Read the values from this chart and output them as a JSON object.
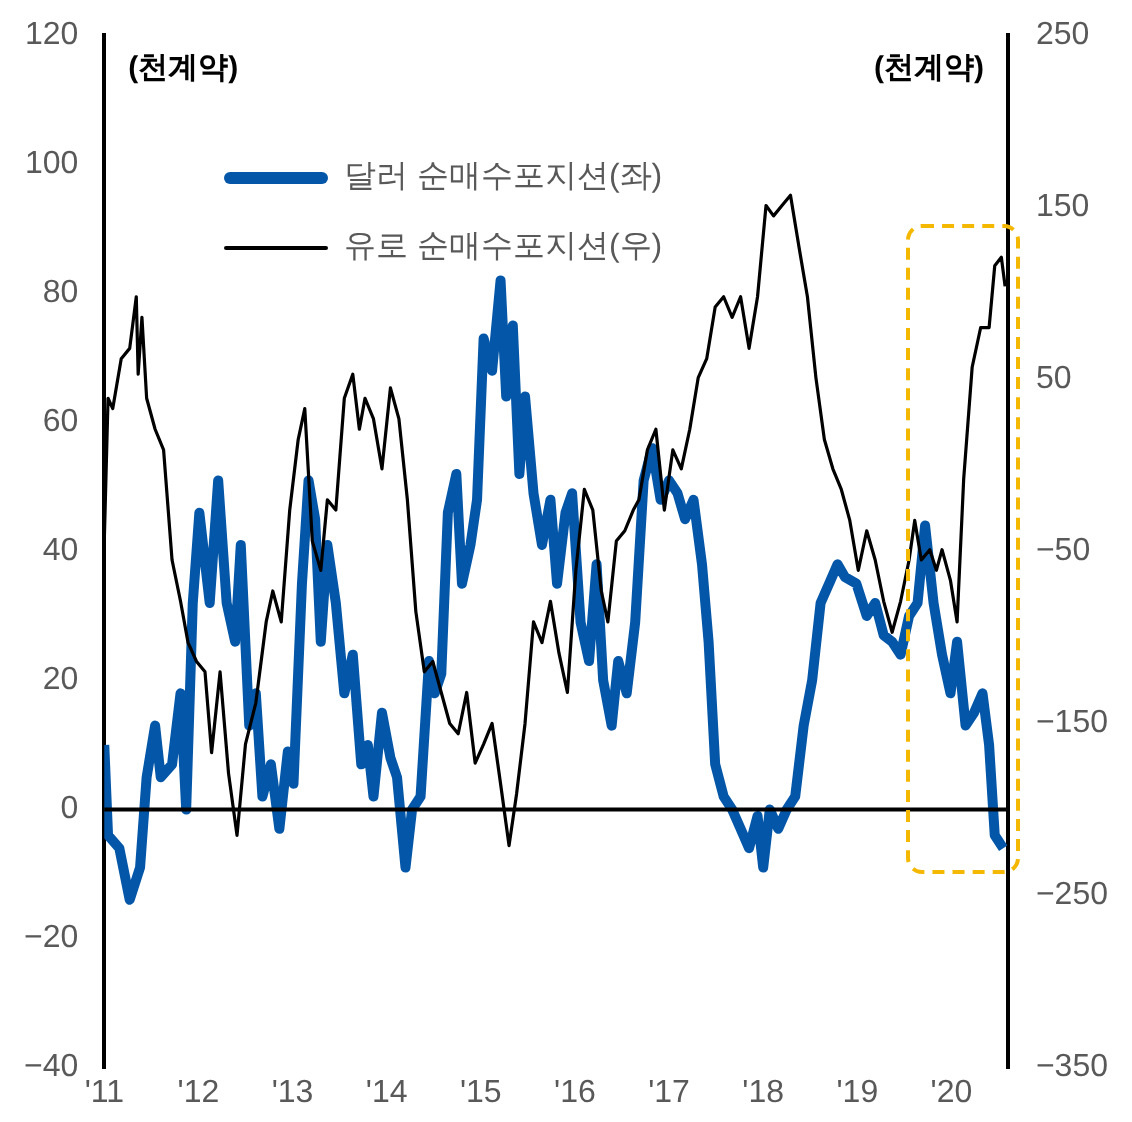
{
  "chart_data": {
    "type": "line",
    "ylabel": "(천계약)",
    "y2label": "(천계약)",
    "xlim": [
      2011,
      2020.6
    ],
    "xticks": [
      {
        "value": 2011,
        "label": "'11"
      },
      {
        "value": 2012,
        "label": "'12"
      },
      {
        "value": 2013,
        "label": "'13"
      },
      {
        "value": 2014,
        "label": "'14"
      },
      {
        "value": 2015,
        "label": "'15"
      },
      {
        "value": 2016,
        "label": "'16"
      },
      {
        "value": 2017,
        "label": "'17"
      },
      {
        "value": 2018,
        "label": "'18"
      },
      {
        "value": 2019,
        "label": "'19"
      },
      {
        "value": 2020,
        "label": "'20"
      }
    ],
    "ylim": [
      -40,
      120
    ],
    "yticks": [
      -40,
      -20,
      0,
      20,
      40,
      60,
      80,
      100,
      120
    ],
    "y2lim": [
      -350,
      250
    ],
    "y2ticks": [
      -350,
      -250,
      -150,
      -50,
      50,
      150,
      250
    ],
    "legend": "top left",
    "grid": false,
    "marker": "none",
    "ref_lines": [
      {
        "axis": "y",
        "value": 0,
        "color": "#000000"
      }
    ],
    "series": [
      {
        "name": "달러 순매수포지션(좌)",
        "color": "#0457a8",
        "axis": "y",
        "x": [
          2011.0,
          2011.04,
          2011.16,
          2011.27,
          2011.38,
          2011.45,
          2011.54,
          2011.6,
          2011.72,
          2011.81,
          2011.87,
          2011.94,
          2012.01,
          2012.12,
          2012.21,
          2012.3,
          2012.39,
          2012.45,
          2012.54,
          2012.61,
          2012.68,
          2012.77,
          2012.86,
          2012.95,
          2013.01,
          2013.1,
          2013.17,
          2013.24,
          2013.3,
          2013.37,
          2013.46,
          2013.55,
          2013.64,
          2013.73,
          2013.8,
          2013.86,
          2013.95,
          2014.04,
          2014.11,
          2014.2,
          2014.27,
          2014.36,
          2014.45,
          2014.51,
          2014.58,
          2014.65,
          2014.74,
          2014.8,
          2014.89,
          2014.96,
          2015.03,
          2015.12,
          2015.21,
          2015.27,
          2015.34,
          2015.41,
          2015.47,
          2015.56,
          2015.65,
          2015.74,
          2015.81,
          2015.9,
          2015.97,
          2016.06,
          2016.15,
          2016.23,
          2016.3,
          2016.39,
          2016.46,
          2016.55,
          2016.64,
          2016.73,
          2016.82,
          2016.91,
          2017.0,
          2017.09,
          2017.17,
          2017.26,
          2017.35,
          2017.42,
          2017.49,
          2017.58,
          2017.67,
          2017.76,
          2017.85,
          2017.94,
          2018.0,
          2018.07,
          2018.16,
          2018.25,
          2018.34,
          2018.43,
          2018.52,
          2018.61,
          2018.7,
          2018.79,
          2018.87,
          2018.99,
          2019.1,
          2019.19,
          2019.28,
          2019.37,
          2019.46,
          2019.55,
          2019.64,
          2019.72,
          2019.81,
          2019.9,
          2019.99,
          2020.06,
          2020.15,
          2020.24,
          2020.33,
          2020.4,
          2020.46,
          2020.55
        ],
        "values": [
          10,
          -4,
          -6,
          -14,
          -9,
          5,
          13,
          5,
          7,
          18,
          0,
          32,
          46,
          32,
          51,
          32,
          26,
          41,
          13,
          18,
          2,
          7,
          -3,
          9,
          4,
          35,
          51,
          45,
          26,
          41,
          32,
          18,
          24,
          7,
          10,
          2,
          15,
          8,
          5,
          -9,
          0,
          2,
          23,
          18,
          21,
          46,
          52,
          35,
          41,
          48,
          73,
          68,
          82,
          64,
          75,
          52,
          64,
          49,
          41,
          48,
          35,
          46,
          49,
          29,
          23,
          38,
          20,
          13,
          23,
          18,
          29,
          51,
          56,
          48,
          51,
          49,
          45,
          48,
          38,
          26,
          7,
          2,
          0,
          -3,
          -6,
          -1,
          -9,
          0,
          -3,
          0,
          2,
          13,
          20,
          32,
          35,
          38,
          36,
          35,
          30,
          32,
          27,
          26,
          24,
          30,
          32,
          44,
          32,
          24,
          18,
          26,
          13,
          15,
          18,
          10,
          -4,
          -6
        ]
      },
      {
        "name": "유로 순매수포지션(우)",
        "color": "#000000",
        "axis": "y2",
        "x": [
          2011.0,
          2011.04,
          2011.09,
          2011.18,
          2011.27,
          2011.34,
          2011.36,
          2011.4,
          2011.45,
          2011.54,
          2011.63,
          2011.72,
          2011.81,
          2011.89,
          2011.98,
          2012.07,
          2012.14,
          2012.23,
          2012.32,
          2012.41,
          2012.5,
          2012.61,
          2012.72,
          2012.79,
          2012.88,
          2012.97,
          2013.06,
          2013.13,
          2013.21,
          2013.3,
          2013.37,
          2013.46,
          2013.55,
          2013.64,
          2013.71,
          2013.77,
          2013.86,
          2013.95,
          2014.04,
          2014.13,
          2014.22,
          2014.31,
          2014.4,
          2014.49,
          2014.58,
          2014.67,
          2014.76,
          2014.85,
          2014.94,
          2015.03,
          2015.12,
          2015.21,
          2015.3,
          2015.38,
          2015.47,
          2015.56,
          2015.65,
          2015.74,
          2015.83,
          2015.92,
          2016.01,
          2016.1,
          2016.19,
          2016.28,
          2016.35,
          2016.44,
          2016.53,
          2016.62,
          2016.68,
          2016.77,
          2016.86,
          2016.95,
          2017.04,
          2017.13,
          2017.22,
          2017.31,
          2017.4,
          2017.49,
          2017.58,
          2017.67,
          2017.76,
          2017.85,
          2017.94,
          2018.03,
          2018.11,
          2018.2,
          2018.29,
          2018.38,
          2018.47,
          2018.56,
          2018.65,
          2018.74,
          2018.83,
          2018.92,
          2019.01,
          2019.1,
          2019.19,
          2019.28,
          2019.37,
          2019.46,
          2019.55,
          2019.61,
          2019.68,
          2019.77,
          2019.84,
          2019.9,
          2019.99,
          2020.06,
          2020.13,
          2020.22,
          2020.31,
          2020.4,
          2020.46,
          2020.53,
          2020.57
        ],
        "values": [
          -44,
          39,
          33,
          62,
          68,
          98,
          53,
          86,
          39,
          21,
          9,
          -55,
          -79,
          -103,
          -114,
          -120,
          -167,
          -120,
          -179,
          -215,
          -162,
          -138,
          -91,
          -73,
          -91,
          -26,
          15,
          33,
          -44,
          -61,
          -20,
          -26,
          39,
          53,
          21,
          39,
          27,
          -2,
          45,
          27,
          -20,
          -85,
          -120,
          -114,
          -132,
          -150,
          -156,
          -132,
          -173,
          -162,
          -150,
          -185,
          -221,
          -191,
          -150,
          -91,
          -103,
          -79,
          -109,
          -132,
          -61,
          -14,
          -26,
          -73,
          -91,
          -44,
          -38,
          -26,
          -20,
          9,
          21,
          -26,
          9,
          -2,
          21,
          51,
          62,
          92,
          98,
          86,
          98,
          68,
          98,
          151,
          145,
          151,
          157,
          127,
          98,
          51,
          15,
          -2,
          -14,
          -32,
          -61,
          -38,
          -55,
          -79,
          -97,
          -79,
          -55,
          -32,
          -55,
          -49,
          -61,
          -49,
          -67,
          -91,
          -8,
          57,
          80,
          80,
          116,
          121,
          104
        ]
      }
    ]
  }
}
